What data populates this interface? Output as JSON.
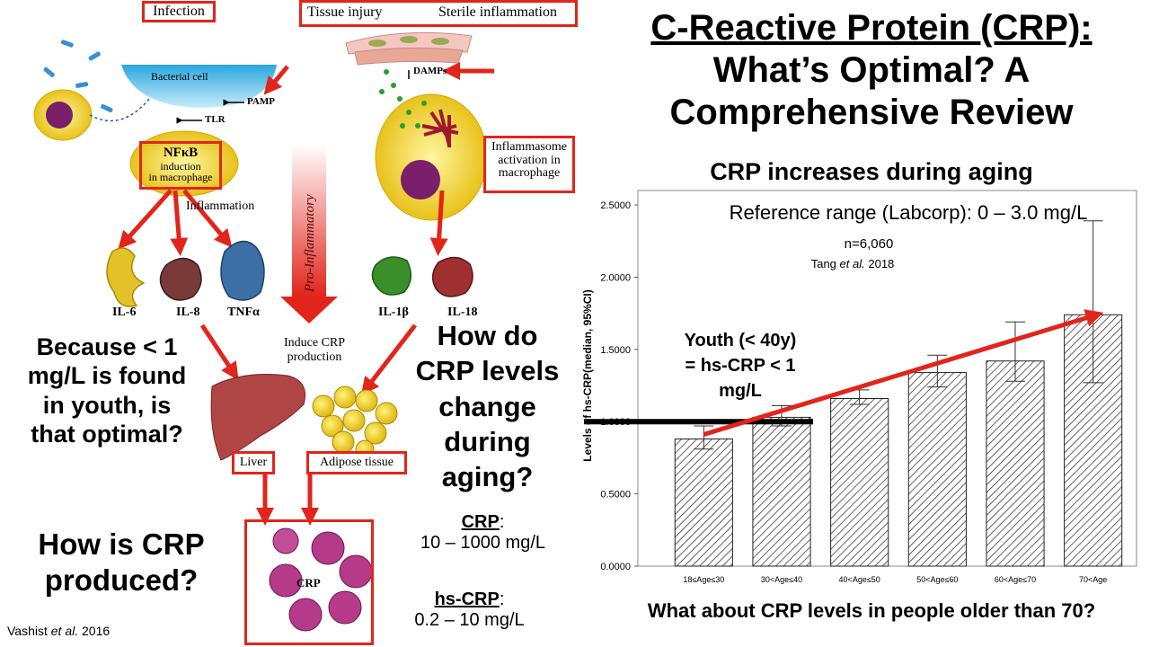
{
  "slide": {
    "title": "C-Reactive Protein (CRP):",
    "title_line2": "What’s Optimal? A",
    "title_line3": "Comprehensive Review",
    "subtitle": "CRP increases during aging",
    "bottom_question": "What about CRP levels in people older than 70?",
    "citation_left": "Vashist",
    "citation_left_etal": "et al.",
    "citation_left_year": "2016"
  },
  "diagram": {
    "infection_label": "Infection",
    "tissue_injury_label": "Tissue injury",
    "sterile_inflammation_label": "Sterile inflammation",
    "bacterial_cell_label": "Bacterial cell",
    "pamp_label": "PAMP",
    "tlr_label": "TLR",
    "damps_label": "DAMPs",
    "nfkb_label": "NFκB",
    "nfkb_sub1": "induction",
    "nfkb_sub2": "in macrophage",
    "inflammasome_line1": "Inflammasome",
    "inflammasome_line2": "activation in",
    "inflammasome_line3": "macrophage",
    "inflammation_label": "Inflammation",
    "pro_inflammatory_label": "Pro-Inflammatory",
    "cytokines": [
      "IL-6",
      "IL-8",
      "TNFα",
      "IL-1β",
      "IL-18"
    ],
    "induce_line1": "Induce CRP",
    "induce_line2": "production",
    "liver_label": "Liver",
    "adipose_label": "Adipose tissue",
    "crp_center_label": "CRP"
  },
  "questions": {
    "q1": [
      "Because < 1",
      "mg/L is found",
      "in youth, is",
      "that optimal?"
    ],
    "q2": [
      "How is CRP",
      "produced?"
    ],
    "q3": [
      "How do",
      "CRP levels",
      "change",
      "during",
      "aging?"
    ]
  },
  "ranges": {
    "crp_label": "CRP",
    "crp_range": "10 – 1000 mg/L",
    "hscrp_label": "hs-CRP",
    "hscrp_range": "0.2 – 10 mg/L"
  },
  "chart_data": {
    "type": "bar",
    "title": "",
    "ylabel": "Levels of hs-CRP(median, 95%CI)",
    "xlabel": "",
    "categories": [
      "18≤Age≤30",
      "30<Age≤40",
      "40<Age≤50",
      "50<Age≤60",
      "60<Age≤70",
      "70<Age"
    ],
    "values": [
      0.88,
      1.03,
      1.16,
      1.34,
      1.42,
      1.74
    ],
    "ci_low": [
      0.81,
      0.97,
      1.12,
      1.24,
      1.28,
      1.27
    ],
    "ci_high": [
      0.97,
      1.11,
      1.22,
      1.46,
      1.69,
      2.39
    ],
    "ylim": [
      0,
      2.6
    ],
    "yticks": [
      "0.0000",
      "0.5000",
      "1.0000",
      "1.5000",
      "2.0000",
      "2.5000"
    ],
    "ytick_values": [
      0,
      0.5,
      1.0,
      1.5,
      2.0,
      2.5
    ],
    "reference_line_value": 1.0,
    "trend_from": 0.88,
    "trend_to": 1.74,
    "annotations": {
      "reference_range": "Reference range (Labcorp): 0 – 3.0 mg/L",
      "n": "n=6,060",
      "source": "Tang",
      "source_etal": "et al.",
      "source_year": "2018",
      "youth_line1": "Youth (< 40y)",
      "youth_line2": "= hs-CRP < 1",
      "youth_line3": "mg/L"
    },
    "colors": {
      "accent_red": "#e1251b",
      "bar_hatch": "#222222"
    }
  }
}
